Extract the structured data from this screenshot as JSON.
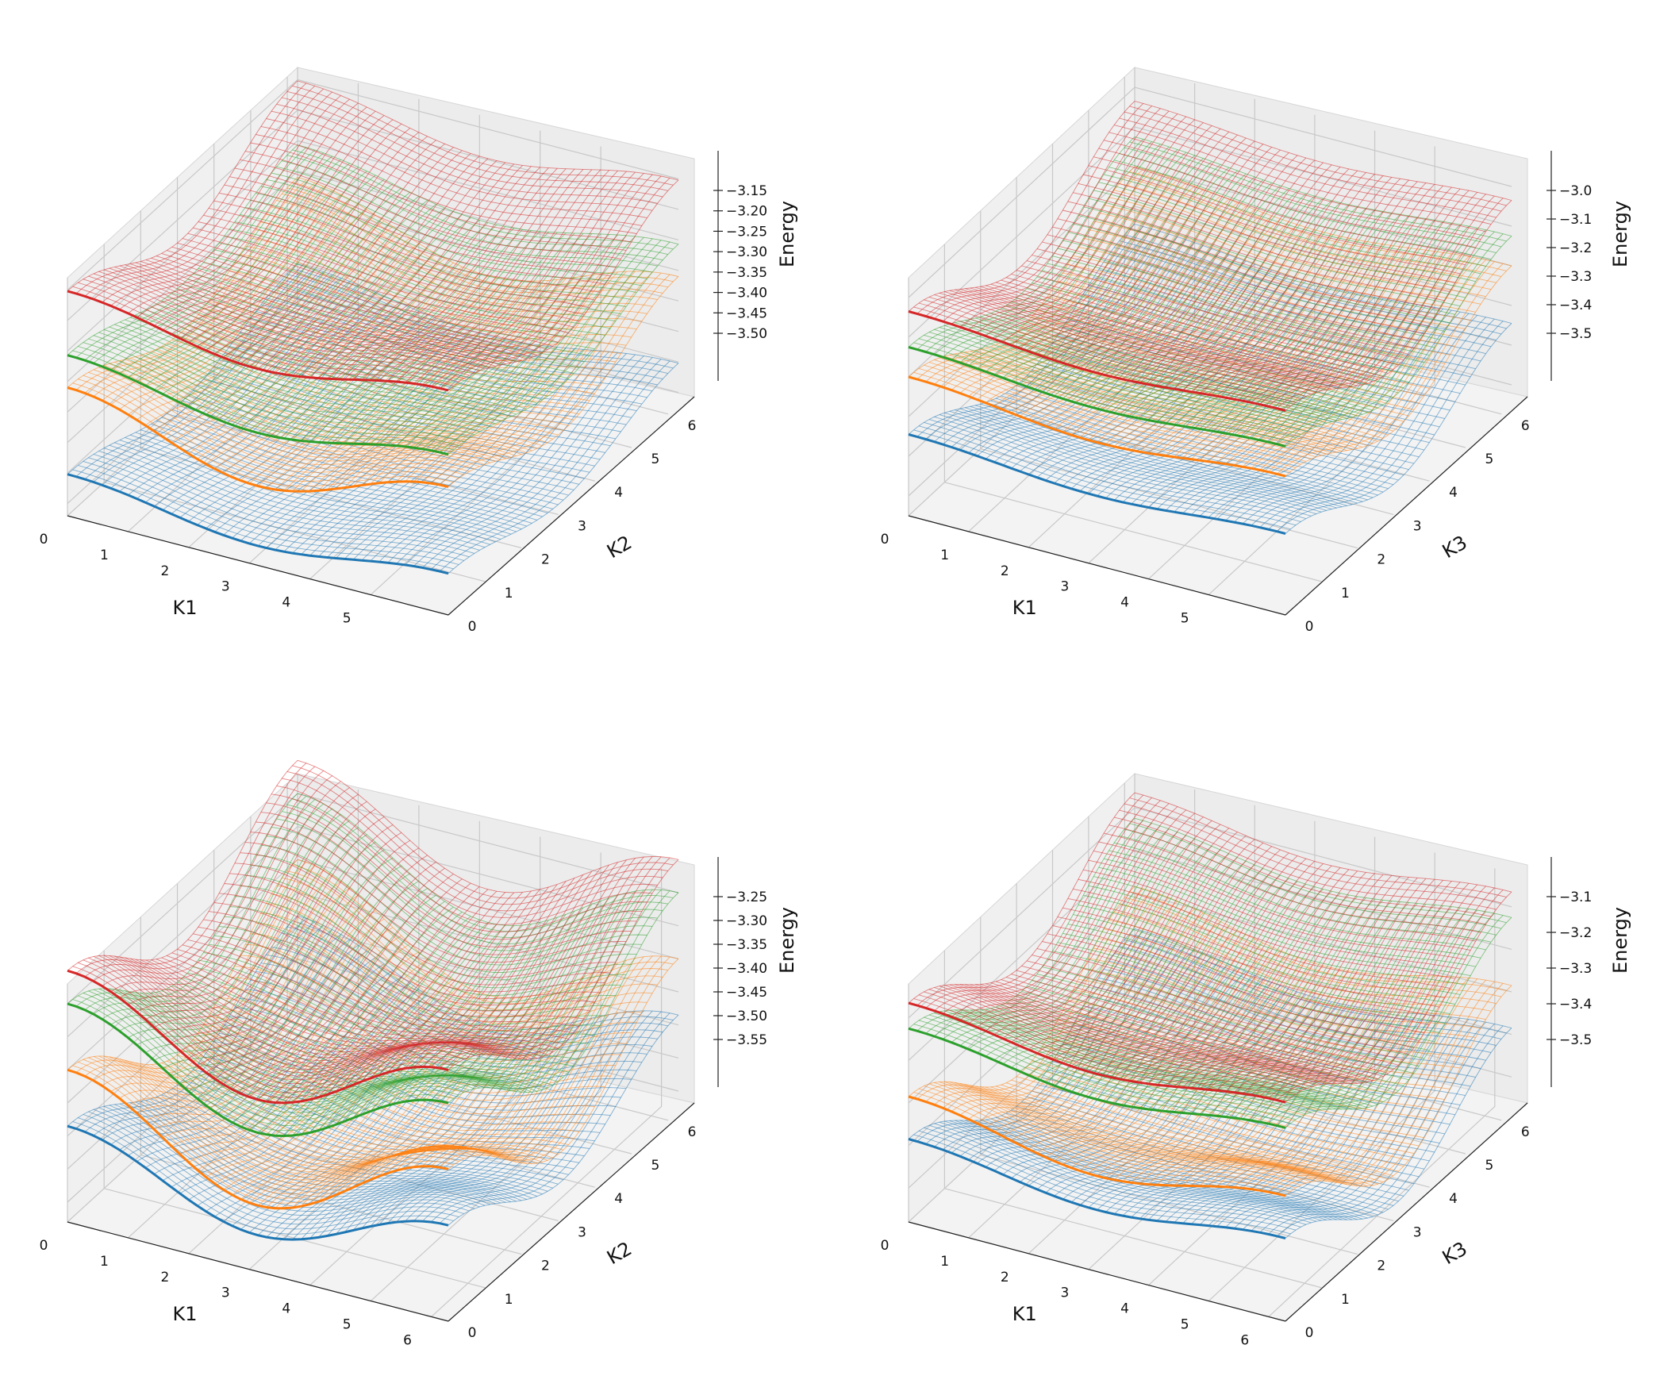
{
  "chart_data": [
    {
      "type": "surface3d",
      "xlabel": "K1",
      "ylabel": "K2",
      "zlabel": "Energy",
      "x_ticks": [
        "0",
        "1",
        "2",
        "3",
        "4",
        "5"
      ],
      "y_ticks": [
        "0",
        "1",
        "2",
        "3",
        "4",
        "5",
        "6"
      ],
      "z_ticks": [
        "−3.15",
        "−3.20",
        "−3.25",
        "−3.30",
        "−3.35",
        "−3.40",
        "−3.45",
        "−3.50"
      ],
      "xlim": [
        0,
        6.28
      ],
      "ylim": [
        0,
        6.28
      ],
      "zlim": [
        -3.52,
        -3.13
      ],
      "grid": true,
      "series": [
        {
          "color": "#1f77b4",
          "base": -3.49,
          "ax": 0.012,
          "ay": 0.02,
          "axy": 0.006
        },
        {
          "color": "#ff7f0e",
          "base": -3.38,
          "ax": 0.03,
          "ay": 0.03,
          "axy": 0.01
        },
        {
          "color": "#2ca02c",
          "base": -3.3,
          "ax": 0.015,
          "ay": 0.02,
          "axy": 0.008
        },
        {
          "color": "#d62728",
          "base": -3.21,
          "ax": 0.015,
          "ay": 0.035,
          "axy": 0.008
        }
      ]
    },
    {
      "type": "surface3d",
      "xlabel": "K1",
      "ylabel": "K3",
      "zlabel": "Energy",
      "x_ticks": [
        "0",
        "1",
        "2",
        "3",
        "4",
        "5"
      ],
      "y_ticks": [
        "0",
        "1",
        "2",
        "3",
        "4",
        "5",
        "6"
      ],
      "z_ticks": [
        "−3.0",
        "−3.1",
        "−3.2",
        "−3.3",
        "−3.4",
        "−3.5"
      ],
      "xlim": [
        0,
        6.28
      ],
      "ylim": [
        0,
        6.28
      ],
      "zlim": [
        -3.55,
        -2.95
      ],
      "grid": true,
      "series": [
        {
          "color": "#1f77b4",
          "base": -3.42,
          "ax": 0.01,
          "ay": 0.06,
          "axy": 0.005
        },
        {
          "color": "#ff7f0e",
          "base": -3.28,
          "ax": 0.01,
          "ay": 0.06,
          "axy": 0.01
        },
        {
          "color": "#2ca02c",
          "base": -3.2,
          "ax": 0.01,
          "ay": 0.06,
          "axy": 0.005
        },
        {
          "color": "#d62728",
          "base": -3.12,
          "ax": 0.01,
          "ay": 0.07,
          "axy": 0.005
        }
      ]
    },
    {
      "type": "surface3d",
      "xlabel": "K1",
      "ylabel": "K2",
      "zlabel": "Energy",
      "x_ticks": [
        "0",
        "1",
        "2",
        "3",
        "4",
        "5",
        "6"
      ],
      "y_ticks": [
        "0",
        "1",
        "2",
        "3",
        "4",
        "5",
        "6"
      ],
      "z_ticks": [
        "−3.25",
        "−3.30",
        "−3.35",
        "−3.40",
        "−3.45",
        "−3.50",
        "−3.55"
      ],
      "xlim": [
        0,
        6.28
      ],
      "ylim": [
        0,
        6.28
      ],
      "zlim": [
        -3.58,
        -3.22
      ],
      "grid": true,
      "series": [
        {
          "color": "#1f77b4",
          "base": -3.51,
          "ax": 0.03,
          "ay": 0.03,
          "axy": 0.015
        },
        {
          "color": "#ff7f0e",
          "base": -3.46,
          "ax": 0.045,
          "ay": 0.045,
          "axy": 0.02
        },
        {
          "color": "#2ca02c",
          "base": -3.35,
          "ax": 0.04,
          "ay": 0.04,
          "axy": 0.02
        },
        {
          "color": "#d62728",
          "base": -3.3,
          "ax": 0.04,
          "ay": 0.04,
          "axy": 0.02
        }
      ]
    },
    {
      "type": "surface3d",
      "xlabel": "K1",
      "ylabel": "K3",
      "zlabel": "Energy",
      "x_ticks": [
        "0",
        "1",
        "2",
        "3",
        "4",
        "5",
        "6"
      ],
      "y_ticks": [
        "0",
        "1",
        "2",
        "3",
        "4",
        "5",
        "6"
      ],
      "z_ticks": [
        "−3.1",
        "−3.2",
        "−3.3",
        "−3.4",
        "−3.5"
      ],
      "xlim": [
        0,
        6.28
      ],
      "ylim": [
        0,
        6.28
      ],
      "zlim": [
        -3.58,
        -3.02
      ],
      "grid": true,
      "series": [
        {
          "color": "#1f77b4",
          "base": -3.48,
          "ax": 0.015,
          "ay": 0.07,
          "axy": 0.01
        },
        {
          "color": "#ff7f0e",
          "base": -3.4,
          "ax": 0.02,
          "ay": 0.08,
          "axy": 0.015
        },
        {
          "color": "#2ca02c",
          "base": -3.22,
          "ax": 0.015,
          "ay": 0.07,
          "axy": 0.01
        },
        {
          "color": "#d62728",
          "base": -3.16,
          "ax": 0.015,
          "ay": 0.07,
          "axy": 0.01
        }
      ]
    }
  ]
}
